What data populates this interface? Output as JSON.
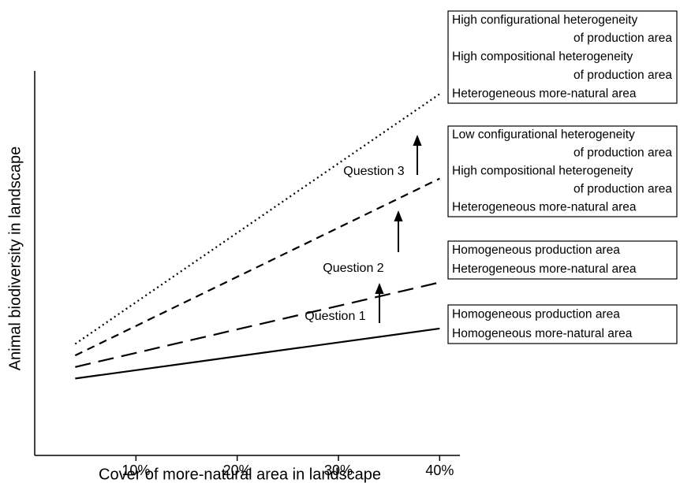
{
  "chart_data": {
    "type": "line",
    "xlabel": "Cover of more-natural area in landscape",
    "ylabel": "Animal biodiversity in landscape",
    "x": [
      4,
      40
    ],
    "xlim": [
      0,
      42
    ],
    "ylim": [
      0,
      100
    ],
    "xticks": [
      {
        "value": 10,
        "label": "10%"
      },
      {
        "value": 20,
        "label": "20%"
      },
      {
        "value": 30,
        "label": "30%"
      },
      {
        "value": 40,
        "label": "40%"
      }
    ],
    "series": [
      {
        "name": [
          "Homogeneous production area",
          "Homogeneous more-natural area"
        ],
        "color": "#000000",
        "linestyle": "solid",
        "values": [
          20,
          33
        ]
      },
      {
        "name": [
          "Homogeneous production area",
          "Heterogeneous more-natural area"
        ],
        "color": "#000000",
        "linestyle": "long-dash",
        "values": [
          23,
          45
        ]
      },
      {
        "name": [
          "Low configurational heterogeneity",
          "of production area",
          "High compositional heterogeneity",
          "of production area",
          "Heterogeneous more-natural area"
        ],
        "color": "#000000",
        "linestyle": "dash",
        "values": [
          26,
          72
        ]
      },
      {
        "name": [
          "High configurational heterogeneity",
          "of production area",
          "High compositional heterogeneity",
          "of production area",
          "Heterogeneous more-natural area"
        ],
        "color": "#000000",
        "linestyle": "dotted",
        "values": [
          29,
          94
        ]
      }
    ],
    "annotations": [
      "Question 1",
      "Question 2",
      "Question 3"
    ]
  }
}
